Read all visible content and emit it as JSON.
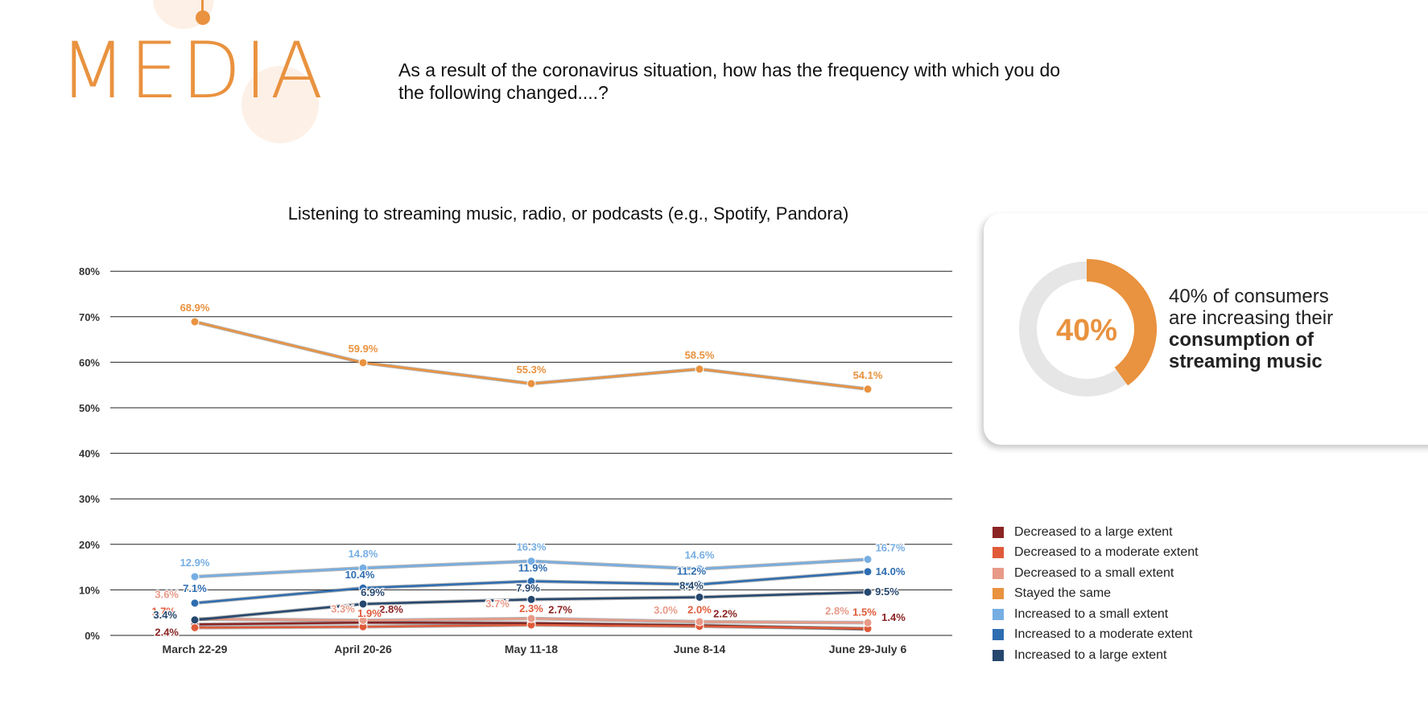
{
  "header": {
    "brand": "MEDIA",
    "question": "As a result of the coronavirus situation, how has the frequency with which you do the following changed....?"
  },
  "callout": {
    "percent": "40%",
    "percent_value": 40,
    "text_line1": "40% of consumers",
    "text_line2": "are increasing their",
    "text_bold1": "consumption of",
    "text_bold2": "streaming music"
  },
  "colors": {
    "brand": "#e9923f",
    "donut_track": "#e6e6e6"
  },
  "chart_data": {
    "type": "line",
    "title": "Listening to streaming music, radio, or podcasts (e.g., Spotify, Pandora)",
    "xlabel": "",
    "ylabel": "",
    "categories": [
      "March 22-29",
      "April 20-26",
      "May 11-18",
      "June 8-14",
      "June 29-July 6"
    ],
    "y_ticks": [
      "0%",
      "10%",
      "20%",
      "30%",
      "40%",
      "50%",
      "60%",
      "70%",
      "80%"
    ],
    "ylim": [
      0,
      80
    ],
    "grid": true,
    "legend_position": "right",
    "series": [
      {
        "name": "Decreased to a large extent",
        "color": "#8b2323",
        "values": [
          2.4,
          2.8,
          2.7,
          2.2,
          1.4
        ],
        "labels": [
          "2.4%",
          "2.8%",
          "2.7%",
          "2.2%",
          "1.4%"
        ]
      },
      {
        "name": "Decreased to a moderate extent",
        "color": "#e05a3a",
        "values": [
          1.7,
          1.9,
          2.3,
          2.0,
          1.5
        ],
        "labels": [
          "1.7%",
          "1.9%",
          "2.3%",
          "2.0%",
          "1.5%"
        ]
      },
      {
        "name": "Decreased to a small extent",
        "color": "#e89a88",
        "values": [
          3.6,
          3.3,
          3.7,
          3.0,
          2.8
        ],
        "labels": [
          "3.6%",
          "3.3%",
          "3.7%",
          "3.0%",
          "2.8%"
        ]
      },
      {
        "name": "Stayed the same",
        "color": "#e9923f",
        "values": [
          68.9,
          59.9,
          55.3,
          58.5,
          54.1
        ],
        "labels": [
          "68.9%",
          "59.9%",
          "55.3%",
          "58.5%",
          "54.1%"
        ]
      },
      {
        "name": "Increased to a small extent",
        "color": "#76aee3",
        "values": [
          12.9,
          14.8,
          16.3,
          14.6,
          16.7
        ],
        "labels": [
          "12.9%",
          "14.8%",
          "16.3%",
          "14.6%",
          "16.7%"
        ]
      },
      {
        "name": "Increased to a moderate extent",
        "color": "#2e6db0",
        "values": [
          7.1,
          10.4,
          11.9,
          11.2,
          14.0
        ],
        "labels": [
          "7.1%",
          "10.4%",
          "11.9%",
          "11.2%",
          "14.0%"
        ]
      },
      {
        "name": "Increased to a large extent",
        "color": "#26476e",
        "values": [
          3.4,
          6.9,
          7.9,
          8.4,
          9.5
        ],
        "labels": [
          "3.4%",
          "6.9%",
          "7.9%",
          "8.4%",
          "9.5%"
        ]
      }
    ]
  }
}
